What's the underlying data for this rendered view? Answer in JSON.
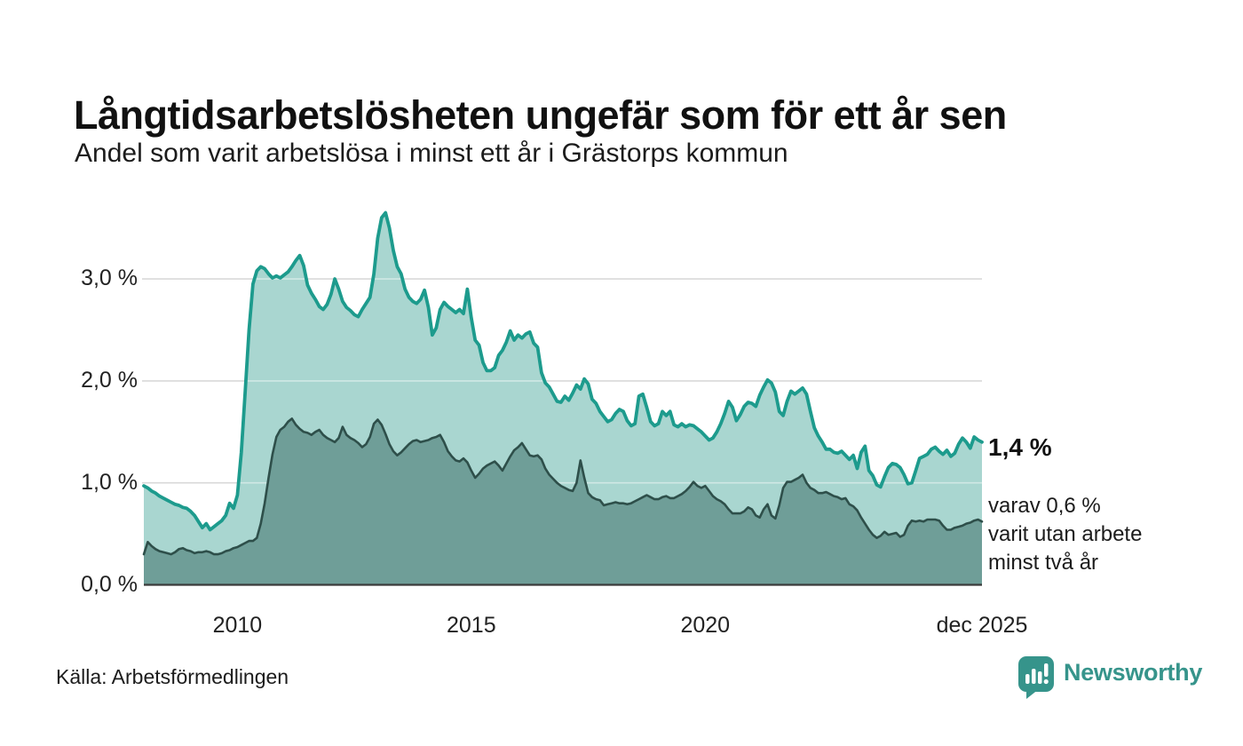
{
  "header": {
    "title": "Långtidsarbetslösheten ungefär som för ett år sen",
    "subtitle": "Andel som varit arbetslösa i minst ett år i Grästorps kommun"
  },
  "annotation": {
    "value_label": "1,4 %",
    "sub_lines": [
      "varav 0,6 %",
      "varit utan arbete",
      "minst två år"
    ]
  },
  "footer": {
    "source": "Källa: Arbetsförmedlingen",
    "brand": "Newsworthy",
    "brand_icon": "newsworthy-speech-bubble-bar-chart-icon"
  },
  "colors": {
    "line_one_year": "#1d9b8d",
    "fill_one_year": "#a9d6d0",
    "line_two_years": "#2e4f4a",
    "fill_two_years": "#6f9e98",
    "gridline": "#d9d9d9",
    "axis_line": "#3b3b3b",
    "brand_teal": "#36948b",
    "text": "#161616"
  },
  "chart_data": {
    "type": "area",
    "title": "Långtidsarbetslösheten ungefär som för ett år sen",
    "subtitle": "Andel som varit arbetslösa i minst ett år i Grästorps kommun",
    "x_unit": "month",
    "x_start": "2008-01",
    "x_end": "2025-12",
    "ylim": [
      0,
      3.7
    ],
    "grid": true,
    "y_ticks": [
      0,
      1,
      2,
      3
    ],
    "y_tick_labels": [
      "0,0 %",
      "1,0 %",
      "2,0 %",
      "3,0 %"
    ],
    "x_tick_months": [
      24,
      84,
      144,
      215
    ],
    "x_tick_labels": [
      "2010",
      "2015",
      "2020",
      "dec 2025"
    ],
    "unit": "percent",
    "series": [
      {
        "name": "Arbetslösa minst ett år",
        "end_label": "1,4 %",
        "values": [
          0.97,
          0.95,
          0.92,
          0.9,
          0.87,
          0.85,
          0.83,
          0.81,
          0.79,
          0.78,
          0.76,
          0.75,
          0.72,
          0.68,
          0.62,
          0.56,
          0.6,
          0.54,
          0.57,
          0.6,
          0.63,
          0.68,
          0.8,
          0.75,
          0.88,
          1.3,
          1.9,
          2.5,
          2.95,
          3.08,
          3.12,
          3.1,
          3.05,
          3.01,
          3.03,
          3.01,
          3.04,
          3.07,
          3.12,
          3.18,
          3.23,
          3.13,
          2.94,
          2.86,
          2.8,
          2.73,
          2.7,
          2.75,
          2.85,
          3.0,
          2.9,
          2.78,
          2.72,
          2.69,
          2.65,
          2.63,
          2.7,
          2.76,
          2.82,
          3.05,
          3.4,
          3.6,
          3.65,
          3.5,
          3.28,
          3.12,
          3.05,
          2.9,
          2.82,
          2.78,
          2.76,
          2.8,
          2.89,
          2.72,
          2.45,
          2.52,
          2.7,
          2.77,
          2.73,
          2.7,
          2.67,
          2.7,
          2.66,
          2.9,
          2.62,
          2.4,
          2.35,
          2.18,
          2.1,
          2.1,
          2.13,
          2.25,
          2.3,
          2.38,
          2.49,
          2.4,
          2.45,
          2.42,
          2.46,
          2.48,
          2.37,
          2.33,
          2.08,
          1.98,
          1.94,
          1.87,
          1.8,
          1.79,
          1.85,
          1.81,
          1.88,
          1.96,
          1.92,
          2.02,
          1.97,
          1.82,
          1.78,
          1.7,
          1.65,
          1.6,
          1.62,
          1.68,
          1.72,
          1.7,
          1.61,
          1.56,
          1.58,
          1.85,
          1.87,
          1.74,
          1.6,
          1.56,
          1.58,
          1.7,
          1.66,
          1.7,
          1.57,
          1.55,
          1.58,
          1.55,
          1.57,
          1.56,
          1.53,
          1.5,
          1.46,
          1.42,
          1.44,
          1.5,
          1.58,
          1.68,
          1.8,
          1.74,
          1.61,
          1.67,
          1.75,
          1.79,
          1.78,
          1.75,
          1.86,
          1.94,
          2.01,
          1.98,
          1.89,
          1.7,
          1.66,
          1.8,
          1.9,
          1.87,
          1.9,
          1.93,
          1.87,
          1.7,
          1.54,
          1.46,
          1.4,
          1.33,
          1.33,
          1.3,
          1.29,
          1.31,
          1.27,
          1.23,
          1.27,
          1.14,
          1.3,
          1.36,
          1.12,
          1.07,
          0.98,
          0.96,
          1.06,
          1.15,
          1.19,
          1.18,
          1.15,
          1.08,
          0.99,
          1.0,
          1.12,
          1.24,
          1.26,
          1.28,
          1.33,
          1.35,
          1.31,
          1.28,
          1.32,
          1.26,
          1.29,
          1.38,
          1.44,
          1.4,
          1.34,
          1.45,
          1.42,
          1.4
        ]
      },
      {
        "name": "Arbetslösa minst två år",
        "end_label": "0,6 %",
        "values": [
          0.3,
          0.42,
          0.38,
          0.35,
          0.33,
          0.32,
          0.31,
          0.3,
          0.32,
          0.35,
          0.36,
          0.34,
          0.33,
          0.31,
          0.32,
          0.32,
          0.33,
          0.32,
          0.3,
          0.3,
          0.31,
          0.33,
          0.34,
          0.36,
          0.37,
          0.39,
          0.41,
          0.43,
          0.43,
          0.46,
          0.6,
          0.8,
          1.05,
          1.28,
          1.45,
          1.52,
          1.55,
          1.6,
          1.63,
          1.57,
          1.53,
          1.5,
          1.49,
          1.47,
          1.5,
          1.52,
          1.47,
          1.44,
          1.42,
          1.4,
          1.44,
          1.55,
          1.47,
          1.44,
          1.42,
          1.39,
          1.35,
          1.38,
          1.45,
          1.58,
          1.62,
          1.57,
          1.48,
          1.38,
          1.31,
          1.27,
          1.3,
          1.34,
          1.38,
          1.41,
          1.42,
          1.4,
          1.41,
          1.42,
          1.44,
          1.45,
          1.47,
          1.4,
          1.31,
          1.26,
          1.22,
          1.21,
          1.24,
          1.2,
          1.12,
          1.05,
          1.09,
          1.14,
          1.17,
          1.19,
          1.21,
          1.17,
          1.12,
          1.19,
          1.26,
          1.32,
          1.35,
          1.39,
          1.33,
          1.27,
          1.26,
          1.27,
          1.23,
          1.14,
          1.08,
          1.04,
          1.0,
          0.97,
          0.95,
          0.93,
          0.92,
          1.0,
          1.22,
          1.05,
          0.9,
          0.86,
          0.84,
          0.83,
          0.78,
          0.79,
          0.8,
          0.81,
          0.8,
          0.8,
          0.79,
          0.8,
          0.82,
          0.84,
          0.86,
          0.88,
          0.86,
          0.84,
          0.84,
          0.86,
          0.87,
          0.85,
          0.85,
          0.87,
          0.89,
          0.92,
          0.96,
          1.01,
          0.97,
          0.95,
          0.97,
          0.92,
          0.87,
          0.84,
          0.82,
          0.79,
          0.74,
          0.7,
          0.7,
          0.7,
          0.72,
          0.76,
          0.74,
          0.68,
          0.66,
          0.74,
          0.79,
          0.68,
          0.65,
          0.78,
          0.95,
          1.01,
          1.01,
          1.03,
          1.05,
          1.08,
          1.0,
          0.95,
          0.93,
          0.9,
          0.9,
          0.91,
          0.89,
          0.87,
          0.86,
          0.84,
          0.85,
          0.79,
          0.77,
          0.73,
          0.66,
          0.6,
          0.54,
          0.49,
          0.46,
          0.48,
          0.52,
          0.49,
          0.5,
          0.51,
          0.47,
          0.49,
          0.58,
          0.63,
          0.62,
          0.63,
          0.62,
          0.64,
          0.64,
          0.64,
          0.63,
          0.58,
          0.54,
          0.54,
          0.56,
          0.57,
          0.58,
          0.6,
          0.61,
          0.63,
          0.64,
          0.62
        ]
      }
    ]
  }
}
